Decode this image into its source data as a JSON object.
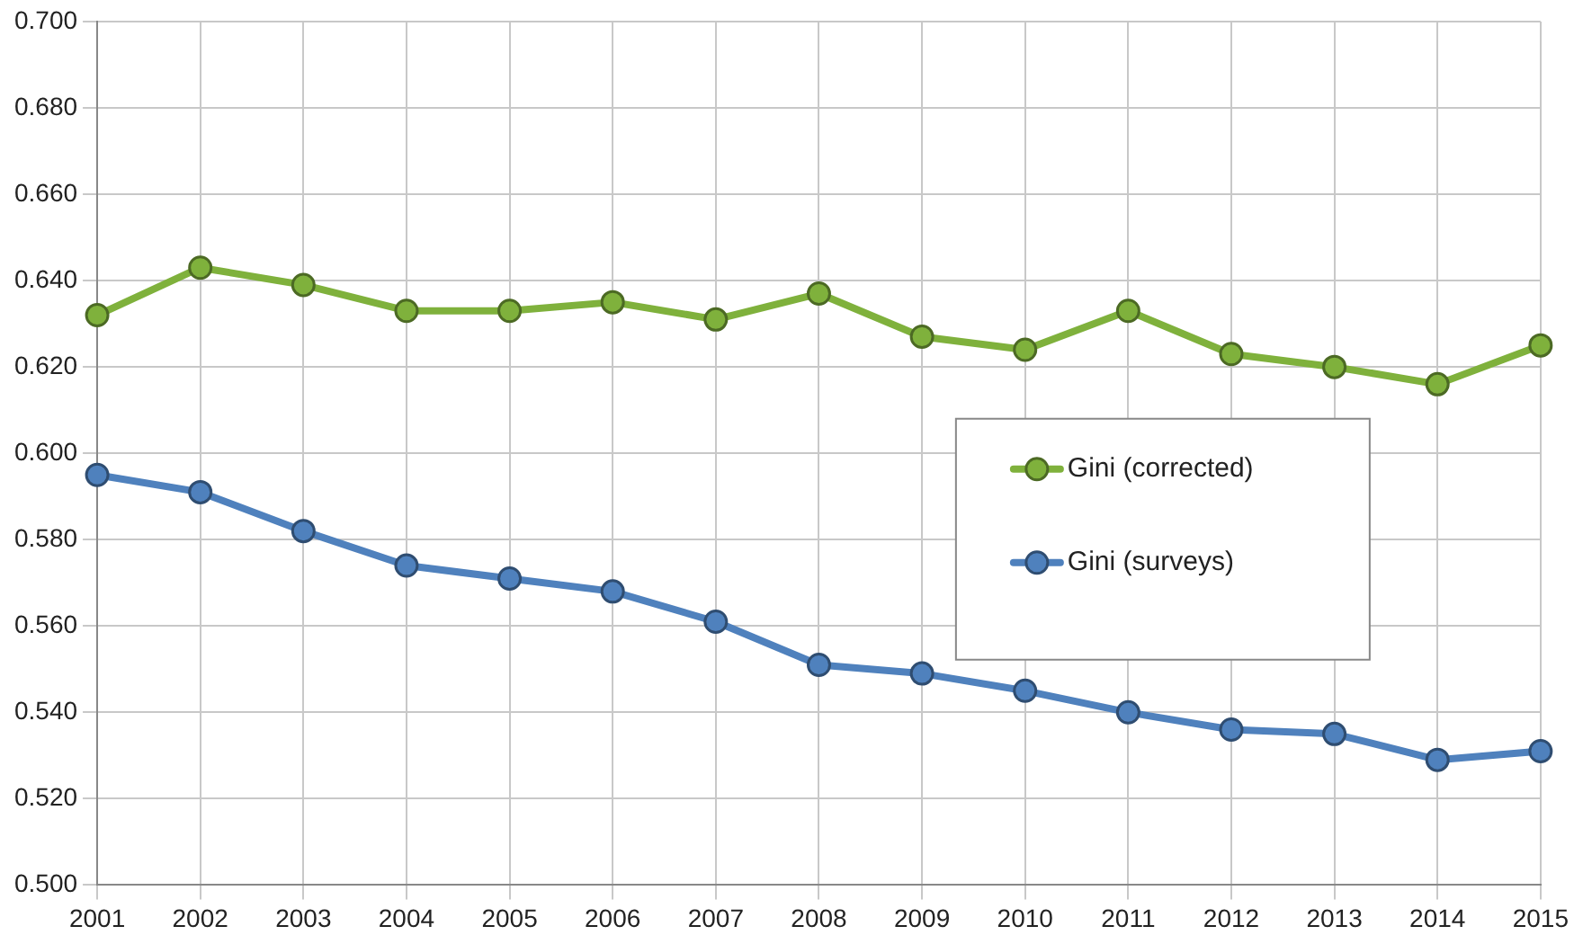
{
  "chart_data": {
    "type": "line",
    "categories": [
      "2001",
      "2002",
      "2003",
      "2004",
      "2005",
      "2006",
      "2007",
      "2008",
      "2009",
      "2010",
      "2011",
      "2012",
      "2013",
      "2014",
      "2015"
    ],
    "series": [
      {
        "name": "Gini (corrected)",
        "color": "#7fb13c",
        "values": [
          0.632,
          0.643,
          0.639,
          0.633,
          0.633,
          0.635,
          0.631,
          0.637,
          0.627,
          0.624,
          0.633,
          0.623,
          0.62,
          0.616,
          0.625
        ]
      },
      {
        "name": "Gini (surveys)",
        "color": "#4f81bd",
        "values": [
          0.595,
          0.591,
          0.582,
          0.574,
          0.571,
          0.568,
          0.561,
          0.551,
          0.549,
          0.545,
          0.54,
          0.536,
          0.535,
          0.529,
          0.531
        ]
      }
    ],
    "ylim": [
      0.5,
      0.7
    ],
    "yticks": [
      {
        "value": 0.5,
        "label": "0.500"
      },
      {
        "value": 0.52,
        "label": "0.520"
      },
      {
        "value": 0.54,
        "label": "0.540"
      },
      {
        "value": 0.56,
        "label": "0.560"
      },
      {
        "value": 0.58,
        "label": "0.580"
      },
      {
        "value": 0.6,
        "label": "0.600"
      },
      {
        "value": 0.62,
        "label": "0.620"
      },
      {
        "value": 0.64,
        "label": "0.640"
      },
      {
        "value": 0.66,
        "label": "0.660"
      },
      {
        "value": 0.68,
        "label": "0.680"
      },
      {
        "value": 0.7,
        "label": "0.700"
      }
    ],
    "grid": true,
    "legend": "right",
    "marker": "circle",
    "line_style": "solid"
  }
}
